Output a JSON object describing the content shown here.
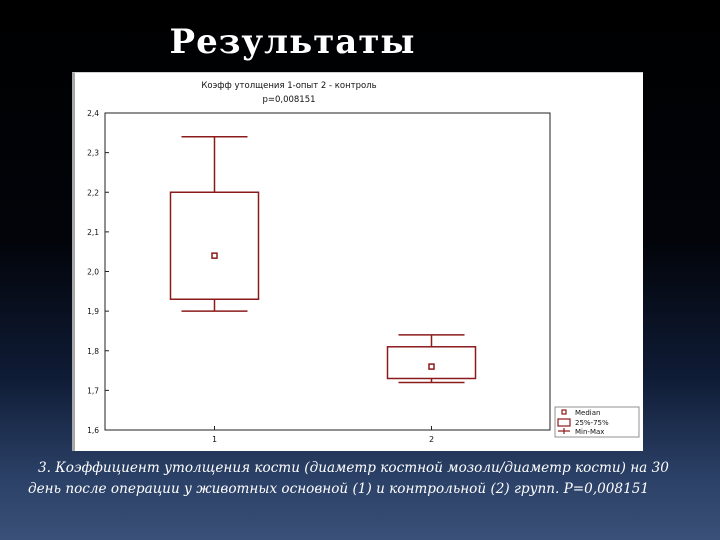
{
  "slide": {
    "title": "Результаты",
    "caption_line1": "3. Коэффициент утолщения кости (диаметр костной мозоли/диаметр кости) на 30",
    "caption_line2": "день после операции у животных основной (1) и контрольной (2) групп. Р=0,008151"
  },
  "chart_data": {
    "type": "boxplot",
    "title": "Коэфф утолщения 1-опыт 2 - контроль",
    "subtitle": "p=0,008151",
    "xlabel": "",
    "ylabel": "",
    "categories": [
      "1",
      "2"
    ],
    "ylim": [
      1.6,
      2.4
    ],
    "yticks": [
      1.6,
      1.7,
      1.8,
      1.9,
      2.0,
      2.1,
      2.2,
      2.3,
      2.4
    ],
    "ytick_labels": [
      "1,6",
      "1,7",
      "1,8",
      "1,9",
      "2,0",
      "2,1",
      "2,2",
      "2,3",
      "2,4"
    ],
    "grid": false,
    "legend_position": "bottom-right",
    "legend": [
      "Median",
      "25%-75%",
      "Min-Max"
    ],
    "boxes": [
      {
        "category": "1",
        "min": 1.9,
        "q1": 1.93,
        "median": 2.04,
        "q3": 2.2,
        "max": 2.34
      },
      {
        "category": "2",
        "min": 1.72,
        "q1": 1.73,
        "median": 1.76,
        "q3": 1.81,
        "max": 1.84
      }
    ],
    "colors": {
      "box": "#8b1a1a"
    }
  }
}
